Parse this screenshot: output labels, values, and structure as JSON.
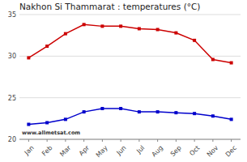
{
  "chart_data": {
    "type": "line",
    "title": "Nakhon Si Thammarat : temperatures (°C)",
    "categories": [
      "Jan",
      "Feb",
      "Mar",
      "Apr",
      "May",
      "Jun",
      "Jul",
      "Aug",
      "Sep",
      "Oct",
      "Nov",
      "Dec"
    ],
    "series": [
      {
        "color": "#cc0000",
        "marker": "square",
        "values": [
          29.8,
          31.2,
          32.7,
          33.8,
          33.6,
          33.6,
          33.3,
          33.2,
          32.8,
          31.9,
          29.6,
          29.2
        ]
      },
      {
        "color": "#0000cc",
        "marker": "square",
        "values": [
          21.8,
          22.0,
          22.4,
          23.3,
          23.7,
          23.7,
          23.3,
          23.3,
          23.2,
          23.1,
          22.8,
          22.4
        ]
      }
    ],
    "ylim": [
      20,
      35
    ],
    "yticks": [
      20,
      25,
      30,
      35
    ],
    "grid": true,
    "annotations": [
      "www.allmetsat.com"
    ]
  }
}
